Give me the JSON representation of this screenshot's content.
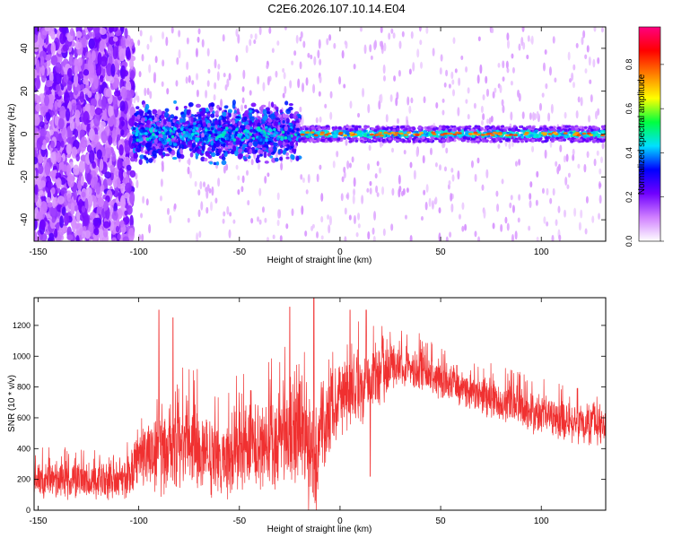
{
  "title": "C2E6.2026.107.10.14.E04",
  "chart_data": [
    {
      "type": "heatmap",
      "xlabel": "Height of straight line (km)",
      "ylabel": "Frequency (Hz)",
      "xlim": [
        -152,
        132
      ],
      "ylim": [
        -50,
        50
      ],
      "xticks": [
        -150,
        -100,
        -50,
        0,
        50,
        100
      ],
      "yticks": [
        -40,
        -20,
        0,
        20,
        40
      ],
      "colorbar": {
        "label": "Normalized spectral amplitude",
        "range": [
          0,
          0.97
        ],
        "ticks": [
          0.0,
          0.2,
          0.4,
          0.6,
          0.8
        ],
        "tick_labels": [
          "0.0",
          "0.2",
          "0.4",
          "0.6",
          "0.8"
        ],
        "colors": [
          "#ffffff",
          "#d080ff",
          "#7000ff",
          "#0000ff",
          "#00e0ff",
          "#00ff40",
          "#ffff00",
          "#ff8000",
          "#ff0000",
          "#ff0080"
        ]
      },
      "regions": [
        {
          "x": [
            -152,
            -103
          ],
          "freq_spread": 50,
          "amplitude": 0.15,
          "note": "broadband noise"
        },
        {
          "x": [
            -103,
            -20
          ],
          "freq_spread": 6,
          "amplitude": 0.4,
          "note": "noisy band around 0 Hz"
        },
        {
          "x": [
            -20,
            132
          ],
          "freq_spread": 3,
          "amplitude": 0.55,
          "note": "narrow band around 0 Hz"
        }
      ]
    },
    {
      "type": "line",
      "xlabel": "Height of straight line (km)",
      "ylabel": "SNR (10 * v/v)",
      "xlim": [
        -152,
        132
      ],
      "ylim": [
        0,
        1380
      ],
      "xticks": [
        -150,
        -100,
        -50,
        0,
        50,
        100
      ],
      "yticks": [
        0,
        200,
        400,
        600,
        800,
        1000,
        1200
      ],
      "color": "#f03030",
      "envelope": {
        "x": [
          -152,
          -130,
          -105,
          -100,
          -90,
          -75,
          -55,
          -40,
          -20,
          -12,
          -8,
          0,
          10,
          20,
          30,
          45,
          60,
          80,
          100,
          132
        ],
        "center": [
          200,
          190,
          200,
          340,
          390,
          420,
          360,
          420,
          520,
          300,
          600,
          760,
          780,
          880,
          960,
          870,
          800,
          700,
          620,
          540
        ],
        "spread": [
          120,
          120,
          140,
          220,
          280,
          300,
          280,
          300,
          420,
          380,
          300,
          250,
          260,
          200,
          140,
          140,
          130,
          130,
          130,
          140
        ]
      },
      "peaks": [
        {
          "x": -90,
          "y": 1300
        },
        {
          "x": -83,
          "y": 1250
        },
        {
          "x": -25,
          "y": 1320
        },
        {
          "x": -13,
          "y": 1380
        },
        {
          "x": 5,
          "y": 1300
        },
        {
          "x": 13,
          "y": 1300
        },
        {
          "x": 15,
          "y": 220
        }
      ]
    }
  ]
}
